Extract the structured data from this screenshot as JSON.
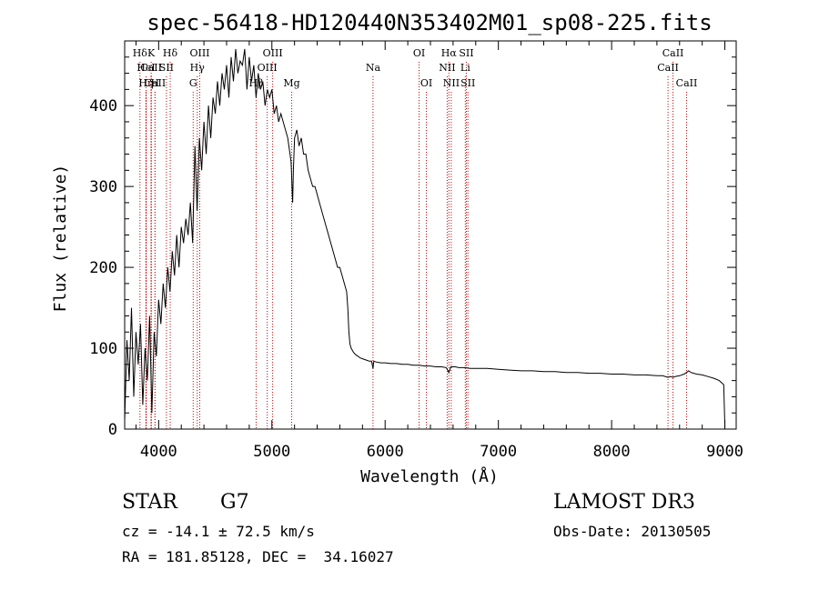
{
  "chart_data": {
    "type": "line",
    "title": "spec-56418-HD120440N353402M01_sp08-225.fits",
    "xlabel": "Wavelength (Å)",
    "ylabel": "Flux (relative)",
    "xlim": [
      3700,
      9100
    ],
    "ylim": [
      0,
      480
    ],
    "x_ticks": [
      4000,
      5000,
      6000,
      7000,
      8000,
      9000
    ],
    "y_ticks": [
      0,
      100,
      200,
      300,
      400
    ],
    "grid": false,
    "series": [
      {
        "name": "spectrum",
        "x": [
          3700,
          3720,
          3740,
          3760,
          3780,
          3800,
          3820,
          3840,
          3860,
          3880,
          3900,
          3920,
          3940,
          3960,
          3980,
          4000,
          4020,
          4040,
          4060,
          4080,
          4100,
          4120,
          4140,
          4160,
          4180,
          4200,
          4220,
          4240,
          4260,
          4280,
          4300,
          4320,
          4340,
          4360,
          4380,
          4400,
          4420,
          4440,
          4460,
          4480,
          4500,
          4520,
          4540,
          4560,
          4580,
          4600,
          4620,
          4640,
          4660,
          4680,
          4700,
          4720,
          4740,
          4760,
          4780,
          4800,
          4820,
          4840,
          4860,
          4880,
          4900,
          4920,
          4940,
          4960,
          4980,
          5000,
          5020,
          5040,
          5060,
          5080,
          5100,
          5120,
          5140,
          5160,
          5170,
          5180,
          5183,
          5190,
          5200,
          5220,
          5240,
          5260,
          5280,
          5300,
          5320,
          5340,
          5360,
          5380,
          5400,
          5420,
          5440,
          5460,
          5480,
          5500,
          5520,
          5540,
          5560,
          5580,
          5600,
          5620,
          5640,
          5660,
          5670,
          5680,
          5690,
          5700,
          5720,
          5740,
          5760,
          5780,
          5800,
          5820,
          5840,
          5860,
          5880,
          5893,
          5900,
          5920,
          5960,
          6000,
          6050,
          6100,
          6150,
          6200,
          6250,
          6300,
          6350,
          6400,
          6450,
          6500,
          6540,
          6563,
          6580,
          6620,
          6650,
          6700,
          6750,
          6800,
          6900,
          7000,
          7100,
          7200,
          7300,
          7400,
          7500,
          7600,
          7700,
          7800,
          7900,
          8000,
          8100,
          8200,
          8300,
          8400,
          8450,
          8498,
          8520,
          8542,
          8560,
          8600,
          8640,
          8662,
          8680,
          8700,
          8750,
          8800,
          8850,
          8900,
          8950,
          8990,
          9000
        ],
        "y": [
          10,
          110,
          60,
          150,
          40,
          120,
          80,
          130,
          30,
          100,
          60,
          140,
          20,
          120,
          90,
          160,
          130,
          180,
          150,
          200,
          170,
          220,
          190,
          240,
          200,
          250,
          230,
          260,
          240,
          280,
          230,
          350,
          270,
          360,
          320,
          380,
          340,
          400,
          360,
          410,
          390,
          430,
          400,
          440,
          420,
          450,
          410,
          460,
          430,
          470,
          440,
          455,
          450,
          470,
          420,
          460,
          430,
          450,
          410,
          440,
          420,
          430,
          400,
          420,
          410,
          420,
          390,
          400,
          380,
          390,
          380,
          370,
          360,
          340,
          330,
          290,
          280,
          320,
          360,
          370,
          350,
          360,
          340,
          340,
          320,
          310,
          300,
          300,
          290,
          280,
          270,
          260,
          250,
          240,
          230,
          220,
          210,
          200,
          200,
          190,
          180,
          170,
          150,
          120,
          105,
          100,
          95,
          92,
          90,
          88,
          87,
          86,
          85,
          84,
          84,
          75,
          84,
          83,
          82,
          82,
          81,
          81,
          80,
          80,
          79,
          79,
          78,
          78,
          77,
          77,
          76,
          70,
          77,
          77,
          76,
          76,
          75,
          75,
          75,
          74,
          73,
          72,
          72,
          71,
          71,
          70,
          70,
          69,
          69,
          68,
          68,
          67,
          67,
          66,
          66,
          64,
          65,
          64,
          65,
          66,
          68,
          70,
          72,
          70,
          68,
          67,
          65,
          63,
          60,
          55,
          2
        ]
      }
    ],
    "line_markers": [
      {
        "label": "Hδ",
        "x": 3835,
        "row": 0
      },
      {
        "label": "CaII",
        "x": 3934,
        "row": 1
      },
      {
        "label": "CaII",
        "x": 3968,
        "row": 2
      },
      {
        "label": "K",
        "x": 3934,
        "row": 0
      },
      {
        "label": "HeI",
        "x": 3889,
        "row": 1
      },
      {
        "label": "Hη",
        "x": 3889,
        "row": 2
      },
      {
        "label": "Hδ",
        "x": 4102,
        "row": 0
      },
      {
        "label": "SII",
        "x": 4069,
        "row": 1
      },
      {
        "label": "H",
        "x": 3968,
        "row": 2
      },
      {
        "label": "OIII",
        "x": 4363,
        "row": 0
      },
      {
        "label": "Hγ",
        "x": 4341,
        "row": 1
      },
      {
        "label": "G",
        "x": 4305,
        "row": 2
      },
      {
        "label": "OIII",
        "x": 5007,
        "row": 0
      },
      {
        "label": "OIII",
        "x": 4959,
        "row": 1
      },
      {
        "label": "Hβ",
        "x": 4861,
        "row": 2
      },
      {
        "label": "Mg",
        "x": 5175,
        "row": 2
      },
      {
        "label": "Na",
        "x": 5893,
        "row": 1
      },
      {
        "label": "OI",
        "x": 6300,
        "row": 0
      },
      {
        "label": "OI",
        "x": 6364,
        "row": 2
      },
      {
        "label": "Hα",
        "x": 6563,
        "row": 0
      },
      {
        "label": "NII",
        "x": 6548,
        "row": 1
      },
      {
        "label": "NII",
        "x": 6584,
        "row": 2
      },
      {
        "label": "SII",
        "x": 6717,
        "row": 0
      },
      {
        "label": "Li",
        "x": 6708,
        "row": 1
      },
      {
        "label": "SII",
        "x": 6731,
        "row": 2
      },
      {
        "label": "CaII",
        "x": 8542,
        "row": 0
      },
      {
        "label": "CaII",
        "x": 8498,
        "row": 1
      },
      {
        "label": "CaII",
        "x": 8662,
        "row": 2
      }
    ]
  },
  "info": {
    "object_class": "STAR",
    "subclass": "G7",
    "survey": "LAMOST DR3",
    "cz": "cz = -14.1 ± 72.5 km/s",
    "obs_date": "Obs-Date: 20130505",
    "radec": "RA = 181.85128, DEC =  34.16027"
  },
  "colors": {
    "marker_line": "#cc0000",
    "axis": "#000000",
    "spectrum": "#000000"
  }
}
